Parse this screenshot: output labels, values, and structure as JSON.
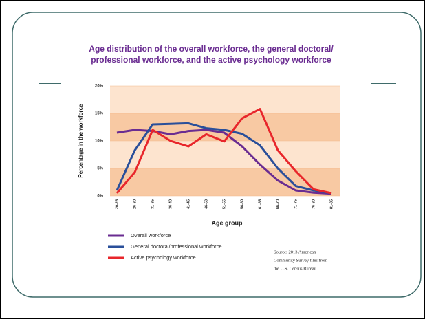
{
  "chart_data": {
    "type": "line",
    "title": [
      "Age distribution of the overall workforce, the general doctoral/",
      "professional workforce, and the active psychology workforce"
    ],
    "x_label": "Age group",
    "y_label": "Percentage in the workforce",
    "categories": [
      "20-25",
      "26-30",
      "31-35",
      "36-40",
      "41-45",
      "46-50",
      "51-55",
      "56-60",
      "61-65",
      "66-70",
      "71-75",
      "76-80",
      "81-85"
    ],
    "series": [
      {
        "name": "Overall workforce",
        "color": "#6a2c91",
        "values": [
          11.5,
          12,
          11.8,
          11.2,
          11.8,
          12,
          11.5,
          9,
          5.7,
          2.8,
          1,
          0.6,
          0.4
        ]
      },
      {
        "name": "General doctoral/professional workforce",
        "color": "#2a4f9a",
        "values": [
          1,
          8.3,
          13,
          13.1,
          13.2,
          12.3,
          12,
          11.3,
          9.2,
          5,
          1.8,
          1,
          0.5
        ]
      },
      {
        "name": "Active psychology workforce",
        "color": "#e8262b",
        "values": [
          0.5,
          4.3,
          12,
          10,
          9,
          11.2,
          9.9,
          14.1,
          15.8,
          8.3,
          4.5,
          1.2,
          0.5
        ]
      }
    ],
    "ylim": [
      0,
      20
    ],
    "yticks": [
      {
        "value": 0,
        "label": "0%"
      },
      {
        "value": 5,
        "label": "5%"
      },
      {
        "value": 10,
        "label": "10%"
      },
      {
        "value": 15,
        "label": "15%"
      },
      {
        "value": 20,
        "label": "20%"
      }
    ],
    "source": [
      "Source: 2013 American",
      "Community Survey files from",
      "the U.S. Census Bureau"
    ]
  }
}
